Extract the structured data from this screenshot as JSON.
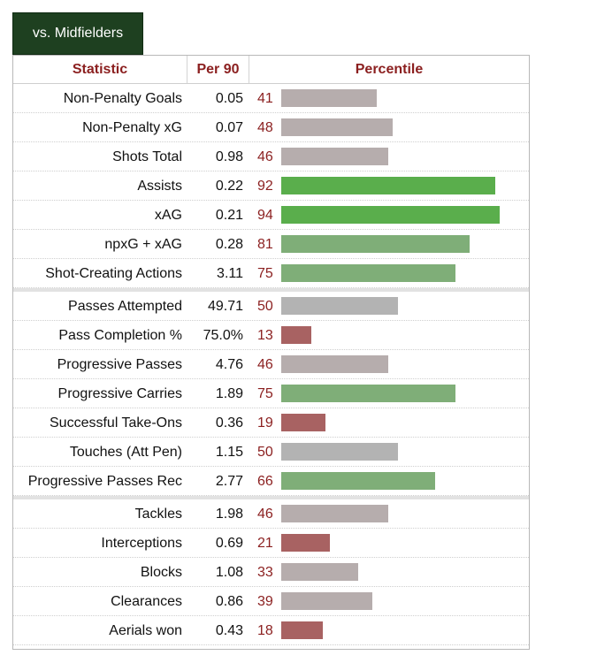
{
  "tab": {
    "label": "vs. Midfielders"
  },
  "headers": {
    "statistic": "Statistic",
    "per90": "Per 90",
    "percentile": "Percentile"
  },
  "colors": {
    "high_dark": "#5aae4c",
    "high_light": "#7fae78",
    "mid": "#b6adad",
    "neutral": "#b3b3b3",
    "low": "#a86262"
  },
  "chart_data": {
    "type": "bar",
    "groups": [
      {
        "rows": [
          {
            "statistic": "Non-Penalty Goals",
            "per90": "0.05",
            "percentile": 41
          },
          {
            "statistic": "Non-Penalty xG",
            "per90": "0.07",
            "percentile": 48
          },
          {
            "statistic": "Shots Total",
            "per90": "0.98",
            "percentile": 46
          },
          {
            "statistic": "Assists",
            "per90": "0.22",
            "percentile": 92
          },
          {
            "statistic": "xAG",
            "per90": "0.21",
            "percentile": 94
          },
          {
            "statistic": "npxG + xAG",
            "per90": "0.28",
            "percentile": 81
          },
          {
            "statistic": "Shot-Creating Actions",
            "per90": "3.11",
            "percentile": 75
          }
        ]
      },
      {
        "rows": [
          {
            "statistic": "Passes Attempted",
            "per90": "49.71",
            "percentile": 50
          },
          {
            "statistic": "Pass Completion %",
            "per90": "75.0%",
            "percentile": 13
          },
          {
            "statistic": "Progressive Passes",
            "per90": "4.76",
            "percentile": 46
          },
          {
            "statistic": "Progressive Carries",
            "per90": "1.89",
            "percentile": 75
          },
          {
            "statistic": "Successful Take-Ons",
            "per90": "0.36",
            "percentile": 19
          },
          {
            "statistic": "Touches (Att Pen)",
            "per90": "1.15",
            "percentile": 50
          },
          {
            "statistic": "Progressive Passes Rec",
            "per90": "2.77",
            "percentile": 66
          }
        ]
      },
      {
        "rows": [
          {
            "statistic": "Tackles",
            "per90": "1.98",
            "percentile": 46
          },
          {
            "statistic": "Interceptions",
            "per90": "0.69",
            "percentile": 21
          },
          {
            "statistic": "Blocks",
            "per90": "1.08",
            "percentile": 33
          },
          {
            "statistic": "Clearances",
            "per90": "0.86",
            "percentile": 39
          },
          {
            "statistic": "Aerials won",
            "per90": "0.43",
            "percentile": 18
          }
        ]
      }
    ],
    "xlim": [
      0,
      100
    ]
  }
}
